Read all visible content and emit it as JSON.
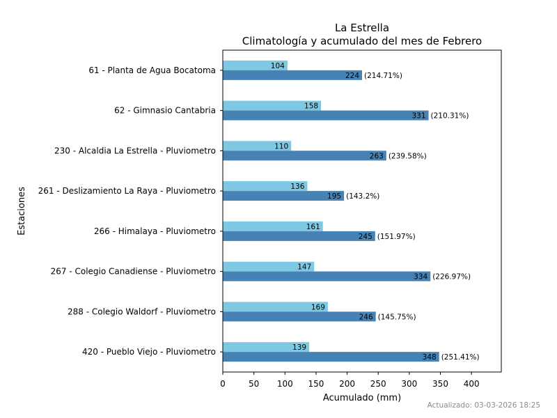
{
  "chart_data": {
    "type": "bar",
    "orientation": "horizontal",
    "title": [
      "La Estrella",
      "Climatología y acumulado del mes de Febrero"
    ],
    "xlabel": "Acumulado (mm)",
    "ylabel": "Estaciones",
    "xlim": [
      0,
      448
    ],
    "xticks": [
      0,
      50,
      100,
      150,
      200,
      250,
      300,
      350,
      400
    ],
    "grid": false,
    "categories": [
      "61 - Planta de Agua Bocatoma",
      "62 - Gimnasio Cantabria",
      "230 - Alcaldia La Estrella - Pluviometro",
      "261 - Deslizamiento La Raya - Pluviometro",
      "266 - Himalaya - Pluviometro",
      "267 - Colegio Canadiense - Pluviometro",
      "288 - Colegio Waldorf - Pluviometro",
      "420 - Pueblo Viejo - Pluviometro"
    ],
    "series": [
      {
        "role": "climatologia",
        "color": "#7ec8e3",
        "values": [
          104,
          158,
          110,
          136,
          161,
          147,
          169,
          139
        ]
      },
      {
        "role": "acumulado",
        "color": "#4682b4",
        "values": [
          224,
          331,
          263,
          195,
          245,
          334,
          246,
          348
        ],
        "percent_labels": [
          "(214.71%)",
          "(210.31%)",
          "(239.58%)",
          "(143.2%)",
          "(151.97%)",
          "(226.97%)",
          "(145.75%)",
          "(251.41%)"
        ]
      }
    ]
  },
  "footer": {
    "updated": "Actualizado: 03-03-2026 18:25"
  }
}
